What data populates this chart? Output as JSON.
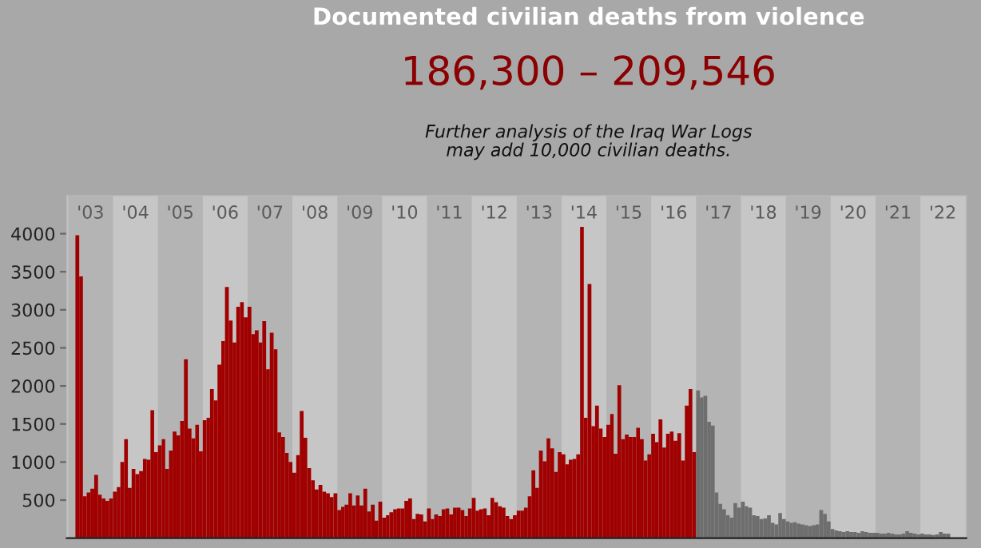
{
  "chart_data": {
    "type": "bar",
    "title": "Documented civilian deaths from violence",
    "subtitle": "186,300 – 209,546",
    "annotations": [
      "Further analysis of the Iraq War Logs\nmay add 10,000 civilian deaths."
    ],
    "series": [
      {
        "color": "#a00000",
        "x": [
          "2003-03",
          "2003-04",
          "2003-05",
          "2003-06",
          "2003-07",
          "2003-08",
          "2003-09",
          "2003-10",
          "2003-11",
          "2003-12",
          "2004-01",
          "2004-02",
          "2004-03",
          "2004-04",
          "2004-05",
          "2004-06",
          "2004-07",
          "2004-08",
          "2004-09",
          "2004-10",
          "2004-11",
          "2004-12",
          "2005-01",
          "2005-02",
          "2005-03",
          "2005-04",
          "2005-05",
          "2005-06",
          "2005-07",
          "2005-08",
          "2005-09",
          "2005-10",
          "2005-11",
          "2005-12",
          "2006-01",
          "2006-02",
          "2006-03",
          "2006-04",
          "2006-05",
          "2006-06",
          "2006-07",
          "2006-08",
          "2006-09",
          "2006-10",
          "2006-11",
          "2006-12",
          "2007-01",
          "2007-02",
          "2007-03",
          "2007-04",
          "2007-05",
          "2007-06",
          "2007-07",
          "2007-08",
          "2007-09",
          "2007-10",
          "2007-11",
          "2007-12",
          "2008-01",
          "2008-02",
          "2008-03",
          "2008-04",
          "2008-05",
          "2008-06",
          "2008-07",
          "2008-08",
          "2008-09",
          "2008-10",
          "2008-11",
          "2008-12",
          "2009-01",
          "2009-02",
          "2009-03",
          "2009-04",
          "2009-05",
          "2009-06",
          "2009-07",
          "2009-08",
          "2009-09",
          "2009-10",
          "2009-11",
          "2009-12",
          "2010-01",
          "2010-02",
          "2010-03",
          "2010-04",
          "2010-05",
          "2010-06",
          "2010-07",
          "2010-08",
          "2010-09",
          "2010-10",
          "2010-11",
          "2010-12",
          "2011-01",
          "2011-02",
          "2011-03",
          "2011-04",
          "2011-05",
          "2011-06",
          "2011-07",
          "2011-08",
          "2011-09",
          "2011-10",
          "2011-11",
          "2011-12",
          "2012-01",
          "2012-02",
          "2012-03",
          "2012-04",
          "2012-05",
          "2012-06",
          "2012-07",
          "2012-08",
          "2012-09",
          "2012-10",
          "2012-11",
          "2012-12",
          "2013-01",
          "2013-02",
          "2013-03",
          "2013-04",
          "2013-05",
          "2013-06",
          "2013-07",
          "2013-08",
          "2013-09",
          "2013-10",
          "2013-11",
          "2013-12",
          "2014-01",
          "2014-02",
          "2014-03",
          "2014-04",
          "2014-05",
          "2014-06",
          "2014-07",
          "2014-08",
          "2014-09",
          "2014-10",
          "2014-11",
          "2014-12",
          "2015-01",
          "2015-02",
          "2015-03",
          "2015-04",
          "2015-05",
          "2015-06",
          "2015-07",
          "2015-08",
          "2015-09",
          "2015-10",
          "2015-11",
          "2015-12",
          "2016-01",
          "2016-02",
          "2016-03",
          "2016-04",
          "2016-05",
          "2016-06",
          "2016-07",
          "2016-08",
          "2016-09",
          "2016-10",
          "2016-11",
          "2016-12"
        ],
        "values": [
          3980,
          3440,
          550,
          600,
          650,
          830,
          570,
          520,
          490,
          520,
          610,
          670,
          1000,
          1300,
          660,
          910,
          840,
          880,
          1040,
          1030,
          1680,
          1130,
          1220,
          1300,
          910,
          1150,
          1400,
          1350,
          1540,
          2350,
          1440,
          1310,
          1490,
          1140,
          1550,
          1580,
          1960,
          1810,
          2280,
          2590,
          3300,
          2860,
          2570,
          3040,
          3100,
          2900,
          3040,
          2680,
          2730,
          2570,
          2850,
          2220,
          2700,
          2480,
          1390,
          1330,
          1120,
          1000,
          860,
          1090,
          1670,
          1320,
          920,
          760,
          640,
          700,
          610,
          590,
          540,
          590,
          370,
          410,
          440,
          590,
          430,
          560,
          430,
          650,
          350,
          440,
          230,
          480,
          270,
          300,
          340,
          380,
          390,
          390,
          490,
          520,
          250,
          320,
          310,
          220,
          390,
          250,
          310,
          290,
          380,
          390,
          310,
          400,
          400,
          370,
          290,
          390,
          530,
          360,
          380,
          390,
          300,
          530,
          470,
          420,
          400,
          290,
          250,
          300,
          360,
          360,
          400,
          550,
          890,
          660,
          1150,
          1010,
          1310,
          1180,
          870,
          1130,
          1100,
          970,
          1030,
          1040,
          1100,
          4090,
          1580,
          3340,
          1470,
          1740,
          1440,
          1330,
          1490,
          1630,
          1110,
          2010,
          1300,
          1360,
          1330,
          1330,
          1450,
          1300,
          1020,
          1100,
          1370,
          1260,
          1560,
          1190,
          1370,
          1400,
          1280,
          1380,
          1020,
          1740,
          1960,
          1130
        ]
      },
      {
        "color": "#6e6e6e",
        "x": [
          "2017-01",
          "2017-02",
          "2017-03",
          "2017-04",
          "2017-05",
          "2017-06",
          "2017-07",
          "2017-08",
          "2017-09",
          "2017-10",
          "2017-11",
          "2017-12",
          "2018-01",
          "2018-02",
          "2018-03",
          "2018-04",
          "2018-05",
          "2018-06",
          "2018-07",
          "2018-08",
          "2018-09",
          "2018-10",
          "2018-11",
          "2018-12",
          "2019-01",
          "2019-02",
          "2019-03",
          "2019-04",
          "2019-05",
          "2019-06",
          "2019-07",
          "2019-08",
          "2019-09",
          "2019-10",
          "2019-11",
          "2019-12",
          "2020-01",
          "2020-02",
          "2020-03",
          "2020-04",
          "2020-05",
          "2020-06",
          "2020-07",
          "2020-08",
          "2020-09",
          "2020-10",
          "2020-11",
          "2020-12",
          "2021-01",
          "2021-02",
          "2021-03",
          "2021-04",
          "2021-05",
          "2021-06",
          "2021-07",
          "2021-08",
          "2021-09",
          "2021-10",
          "2021-11",
          "2021-12",
          "2022-01",
          "2022-02",
          "2022-03",
          "2022-04",
          "2022-05",
          "2022-06",
          "2022-07",
          "2022-08"
        ],
        "values": [
          1940,
          1850,
          1870,
          1530,
          1480,
          600,
          450,
          380,
          300,
          270,
          460,
          400,
          480,
          420,
          400,
          300,
          290,
          250,
          260,
          300,
          200,
          180,
          330,
          250,
          220,
          200,
          210,
          190,
          180,
          170,
          160,
          170,
          180,
          370,
          320,
          220,
          120,
          100,
          90,
          80,
          90,
          80,
          80,
          70,
          90,
          80,
          70,
          70,
          70,
          60,
          60,
          70,
          60,
          50,
          50,
          60,
          90,
          70,
          60,
          50,
          60,
          50,
          50,
          40,
          50,
          80,
          60,
          60
        ]
      }
    ],
    "ylim": [
      0,
      4500
    ],
    "yticks": [
      500,
      1000,
      1500,
      2000,
      2500,
      3000,
      3500,
      4000
    ],
    "xlim": [
      "2002-12-20",
      "2023-01-10"
    ],
    "xticks": [
      {
        "value": "2003-07-02",
        "label": "'03"
      },
      {
        "value": "2004-07-02",
        "label": "'04"
      },
      {
        "value": "2005-07-02",
        "label": "'05"
      },
      {
        "value": "2006-07-02",
        "label": "'06"
      },
      {
        "value": "2007-07-02",
        "label": "'07"
      },
      {
        "value": "2008-07-02",
        "label": "'08"
      },
      {
        "value": "2009-07-02",
        "label": "'09"
      },
      {
        "value": "2010-07-02",
        "label": "'10"
      },
      {
        "value": "2011-07-02",
        "label": "'11"
      },
      {
        "value": "2012-07-02",
        "label": "'12"
      },
      {
        "value": "2013-07-02",
        "label": "'13"
      },
      {
        "value": "2014-07-02",
        "label": "'14"
      },
      {
        "value": "2015-07-02",
        "label": "'15"
      },
      {
        "value": "2016-07-02",
        "label": "'16"
      },
      {
        "value": "2017-07-02",
        "label": "'17"
      },
      {
        "value": "2018-07-02",
        "label": "'18"
      },
      {
        "value": "2019-07-02",
        "label": "'19"
      },
      {
        "value": "2020-07-02",
        "label": "'20"
      },
      {
        "value": "2021-07-02",
        "label": "'21"
      },
      {
        "value": "2022-07-02",
        "label": "'22"
      }
    ],
    "bands": [
      {
        "axis": "x",
        "from": "2003-01-01",
        "to": "2004-01-01",
        "color": "#b4b4b4"
      },
      {
        "axis": "x",
        "from": "2005-01-01",
        "to": "2006-01-01",
        "color": "#b4b4b4"
      },
      {
        "axis": "x",
        "from": "2007-01-01",
        "to": "2008-01-01",
        "color": "#b4b4b4"
      },
      {
        "axis": "x",
        "from": "2009-01-01",
        "to": "2010-01-01",
        "color": "#b4b4b4"
      },
      {
        "axis": "x",
        "from": "2011-01-01",
        "to": "2012-01-01",
        "color": "#b4b4b4"
      },
      {
        "axis": "x",
        "from": "2013-01-01",
        "to": "2014-01-01",
        "color": "#b4b4b4"
      },
      {
        "axis": "x",
        "from": "2015-01-01",
        "to": "2016-01-01",
        "color": "#b4b4b4"
      },
      {
        "axis": "x",
        "from": "2017-01-01",
        "to": "2018-01-01",
        "color": "#b4b4b4"
      },
      {
        "axis": "x",
        "from": "2019-01-01",
        "to": "2020-01-01",
        "color": "#b4b4b4"
      },
      {
        "axis": "x",
        "from": "2021-01-01",
        "to": "2022-01-01",
        "color": "#b4b4b4"
      }
    ],
    "grid": false,
    "legend": false
  }
}
